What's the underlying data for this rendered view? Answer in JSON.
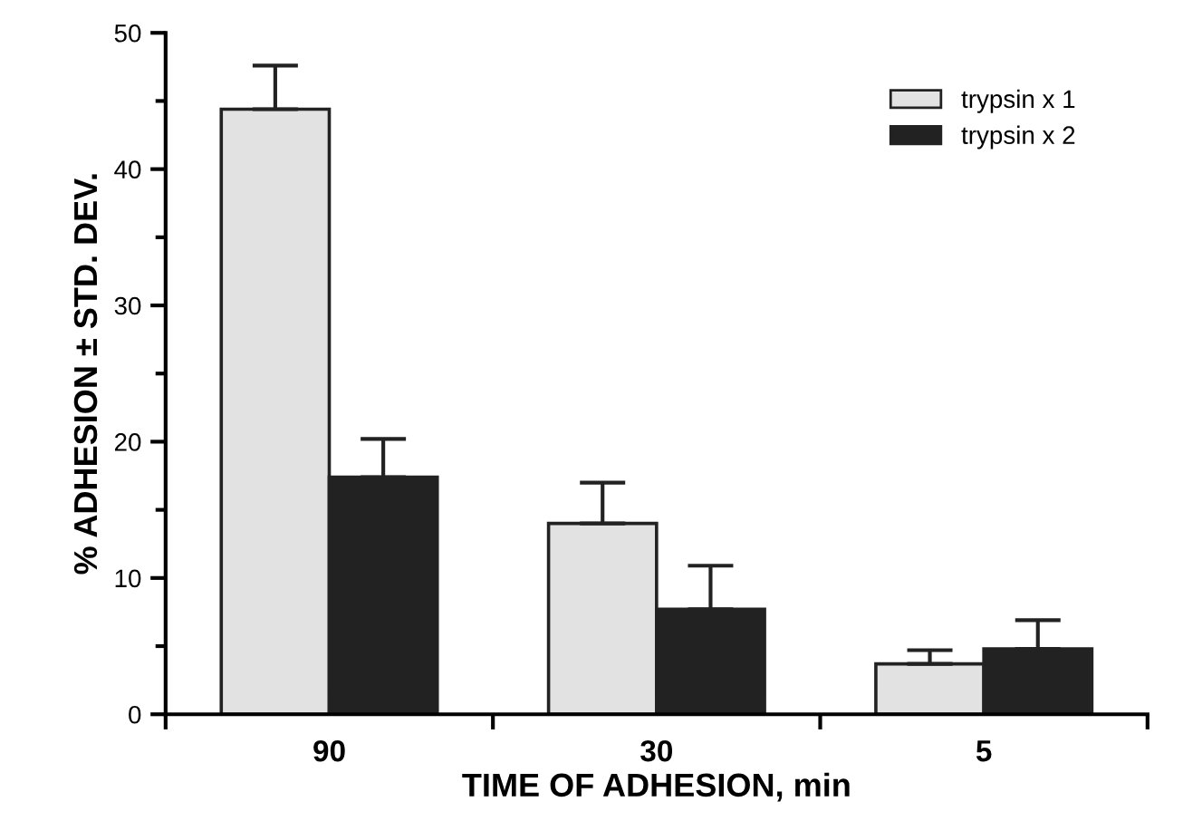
{
  "chart_data": {
    "type": "bar",
    "xlabel": "TIME OF ADHESION, min",
    "ylabel": "% ADHESION ± STD. DEV.",
    "categories": [
      "90",
      "30",
      "5"
    ],
    "series": [
      {
        "name": "trypsin x 1",
        "color": "#e2e2e2",
        "values": [
          44.4,
          14.0,
          3.7
        ],
        "errors": [
          [
            44.4,
            47.6
          ],
          [
            14.0,
            17.0
          ],
          [
            3.7,
            4.7
          ]
        ]
      },
      {
        "name": "trypsin x 2",
        "color": "#222222",
        "values": [
          17.4,
          7.7,
          4.8
        ],
        "errors": [
          [
            17.4,
            20.2
          ],
          [
            7.7,
            10.9
          ],
          [
            4.8,
            6.9
          ]
        ]
      }
    ],
    "ylim": [
      0,
      50
    ],
    "yticks": [
      0,
      10,
      20,
      30,
      40,
      50
    ],
    "grid": false,
    "legend": "top right"
  }
}
